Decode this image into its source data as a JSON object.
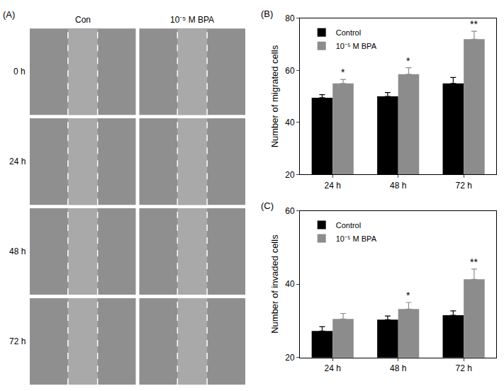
{
  "image_panel": {
    "label": "(A)",
    "columns": [
      "Con",
      "10⁻⁵ M BPA"
    ],
    "rows": [
      "0 h",
      "24 h",
      "48 h",
      "72 h"
    ]
  },
  "chart_data": [
    {
      "type": "bar",
      "title": "(B)",
      "y_label": "Number of migrated cells",
      "categories": [
        "24 h",
        "48 h",
        "72 h"
      ],
      "series": [
        {
          "name": "Control",
          "color": "#000000",
          "values": [
            49.5,
            50.0,
            55.0
          ],
          "errors": [
            1.2,
            1.5,
            2.3
          ]
        },
        {
          "name": "10⁻⁵ M BPA",
          "color": "#8c8c8c",
          "values": [
            55.0,
            58.5,
            72.0
          ],
          "errors": [
            1.5,
            2.5,
            3.0
          ]
        }
      ],
      "ylim": [
        20,
        80
      ],
      "yticks": [
        20,
        40,
        60,
        80
      ],
      "legend": "upper left",
      "annotations": [
        {
          "category": "24 h",
          "series": "10⁻⁵ M BPA",
          "text": "*"
        },
        {
          "category": "48 h",
          "series": "10⁻⁵ M BPA",
          "text": "*"
        },
        {
          "category": "72 h",
          "series": "10⁻⁵ M BPA",
          "text": "**"
        }
      ]
    },
    {
      "type": "bar",
      "title": "(C)",
      "y_label": "Number of invaded cells",
      "categories": [
        "24 h",
        "48 h",
        "72 h"
      ],
      "series": [
        {
          "name": "Control",
          "color": "#000000",
          "values": [
            27.2,
            30.3,
            31.5
          ],
          "errors": [
            1.2,
            1.0,
            1.2
          ]
        },
        {
          "name": "10⁻⁵ M BPA",
          "color": "#8c8c8c",
          "values": [
            30.5,
            33.2,
            41.3
          ],
          "errors": [
            1.5,
            1.8,
            2.8
          ]
        }
      ],
      "ylim": [
        20,
        60
      ],
      "yticks": [
        20,
        40,
        60
      ],
      "legend": "upper left",
      "annotations": [
        {
          "category": "48 h",
          "series": "10⁻⁵ M BPA",
          "text": "*"
        },
        {
          "category": "72 h",
          "series": "10⁻⁵ M BPA",
          "text": "**"
        }
      ]
    }
  ]
}
